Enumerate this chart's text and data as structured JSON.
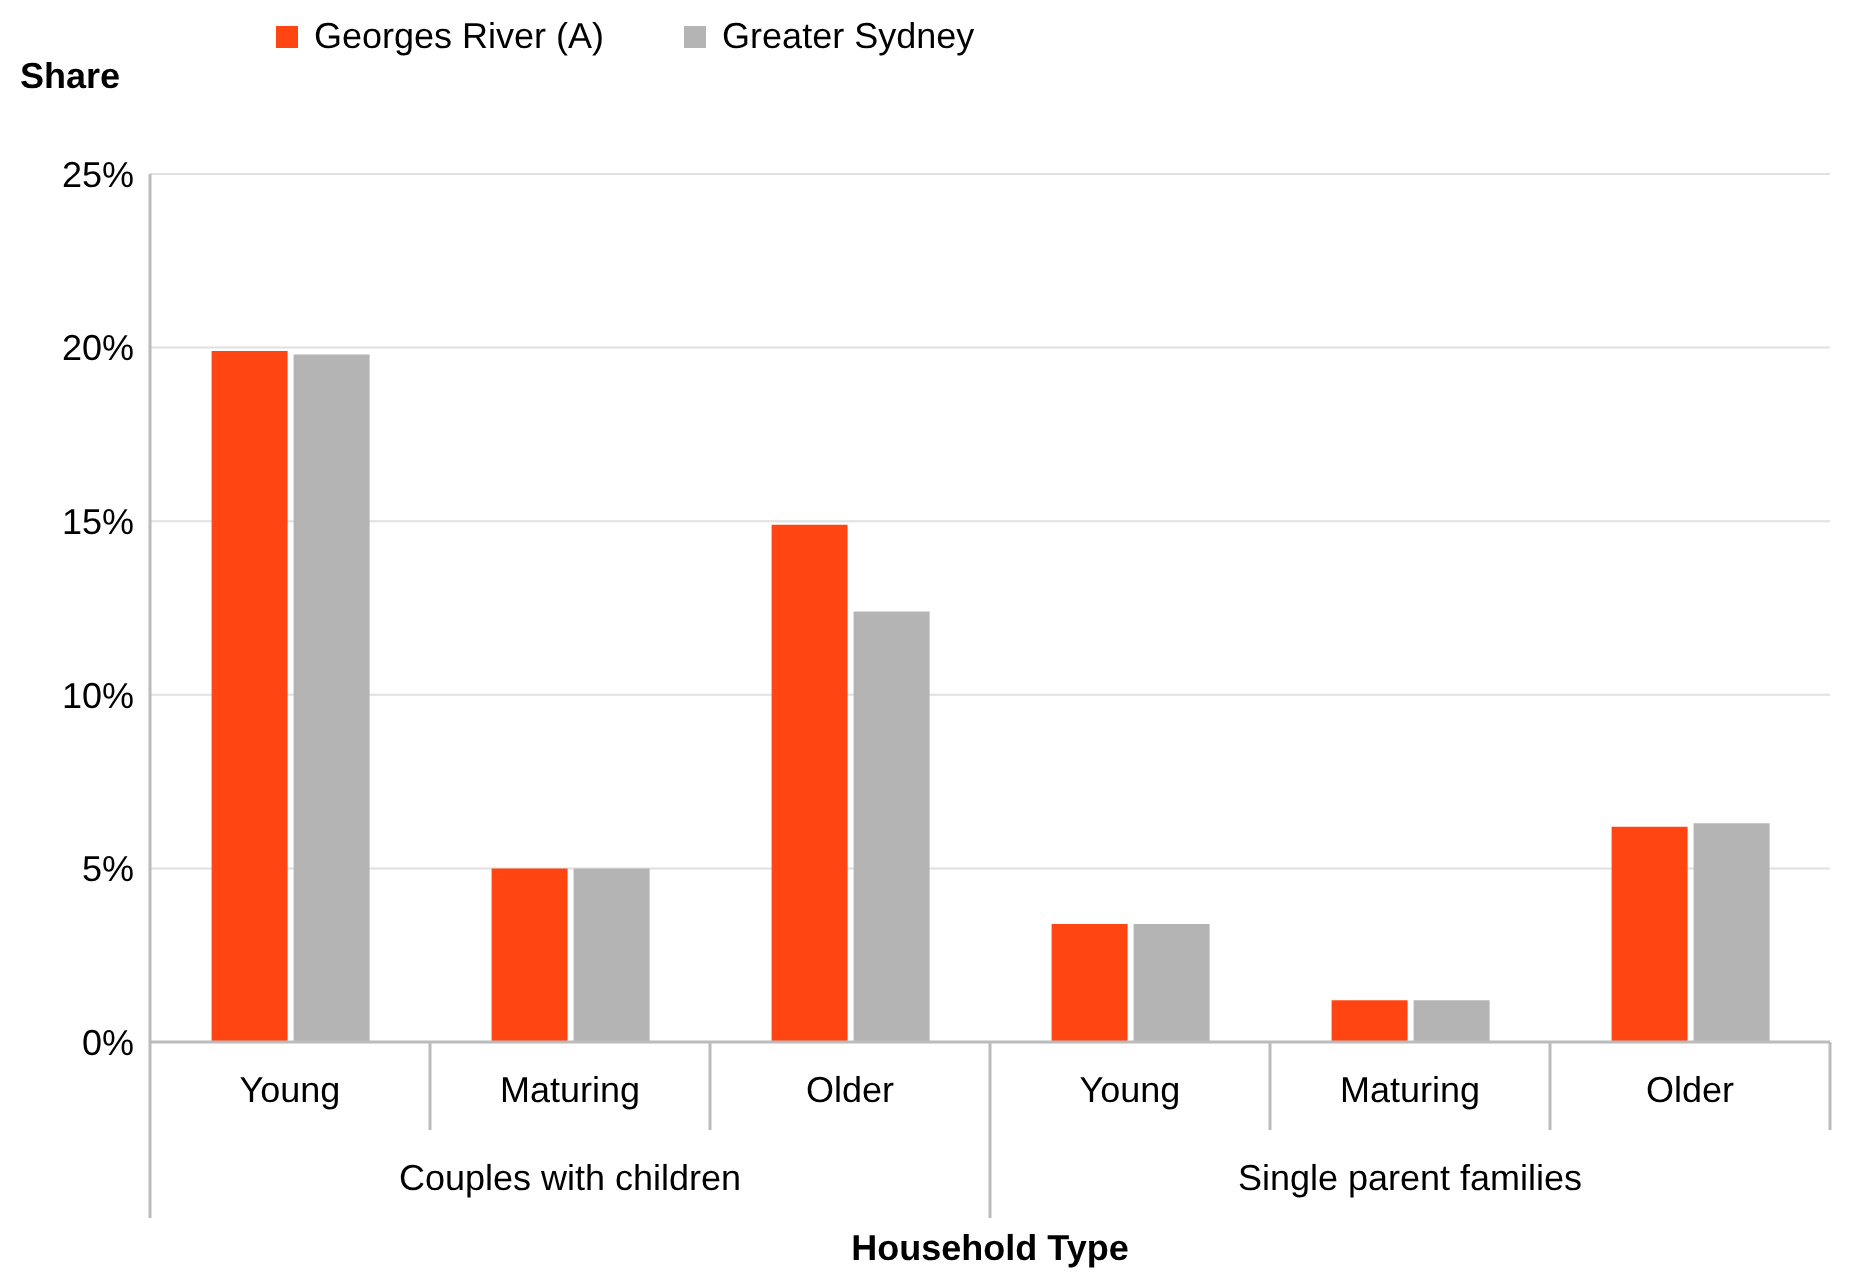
{
  "chart_data": {
    "type": "bar",
    "xlabel": "Household Type",
    "ylabel": "Share",
    "categories": [
      "Young",
      "Maturing",
      "Older",
      "Young",
      "Maturing",
      "Older"
    ],
    "series": [
      {
        "name": "Georges River (A)",
        "color": "#ff4512",
        "values": [
          19.9,
          5.0,
          14.9,
          3.4,
          1.2,
          6.2
        ]
      },
      {
        "name": "Greater Sydney",
        "color": "#b4b4b4",
        "values": [
          19.8,
          5.0,
          12.4,
          3.4,
          1.2,
          6.3
        ]
      }
    ],
    "annotations": [
      "Couples with children",
      "Single parent families"
    ],
    "ylim": [
      0,
      25
    ],
    "yticks": [
      {
        "value": 0,
        "label": "0%"
      },
      {
        "value": 5,
        "label": "5%"
      },
      {
        "value": 10,
        "label": "10%"
      },
      {
        "value": 15,
        "label": "15%"
      },
      {
        "value": 20,
        "label": "20%"
      },
      {
        "value": 25,
        "label": "25%"
      }
    ],
    "grid": "y",
    "legend": "top"
  }
}
